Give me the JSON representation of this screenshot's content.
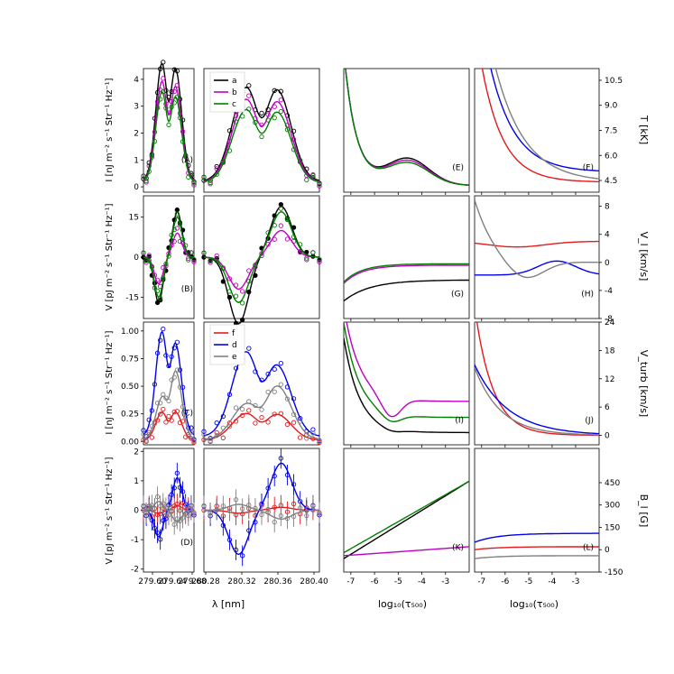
{
  "colors": {
    "black": "#000000",
    "magenta": "#bf00bf",
    "green": "#008000",
    "red": "#e41a1c",
    "blue": "#0000ee",
    "gray": "#808080"
  },
  "legends": {
    "top": [
      {
        "label": "a",
        "color": "#000000"
      },
      {
        "label": "b",
        "color": "#bf00bf"
      },
      {
        "label": "c",
        "color": "#008000"
      }
    ],
    "bottom": [
      {
        "label": "f",
        "color": "#e41a1c"
      },
      {
        "label": "d",
        "color": "#0000ee"
      },
      {
        "label": "e",
        "color": "#808080"
      }
    ]
  },
  "axes_text": {
    "ylabel_A": "I  [nJ m⁻² s⁻¹ Str⁻¹ Hz⁻¹]",
    "ylabel_B": "V  [pJ m⁻² s⁻¹ Str⁻¹ Hz⁻¹]",
    "ylabel_C": "I  [nJ m⁻² s⁻¹ Str⁻¹ Hz⁻¹]",
    "ylabel_D": "V  [pJ m⁻² s⁻¹ Str⁻¹ Hz⁻¹]",
    "xlabel_spec": "λ [nm]",
    "xlabel_tau_left": "log₁₀(τ₅₀₀)",
    "xlabel_tau_right": "log₁₀(τ₅₀₀)",
    "ylabel_T": "T [kK]",
    "ylabel_VL": "V_l [km/s]",
    "ylabel_Vturb": "V_turb [km/s]",
    "ylabel_BL": "B_l [G]"
  },
  "chart_data": [
    {
      "panel": "A",
      "type": "line",
      "ylim": [
        -0.2,
        4.4
      ],
      "yticks": [
        "0",
        "1",
        "2",
        "3",
        "4"
      ],
      "series": [
        {
          "name": "a",
          "color": "#000000",
          "peaks_left": [
            4.15,
            3.95
          ],
          "peaks_right": [
            3.35,
            3.25
          ]
        },
        {
          "name": "b",
          "color": "#bf00bf",
          "peaks_left": [
            3.55,
            3.35
          ],
          "peaks_right": [
            2.95,
            2.85
          ]
        },
        {
          "name": "c",
          "color": "#008000",
          "peaks_left": [
            3.2,
            3.0
          ],
          "peaks_right": [
            2.6,
            2.5
          ]
        }
      ]
    },
    {
      "panel": "B",
      "type": "line",
      "ylim": [
        -23,
        23
      ],
      "yticks": [
        "-15",
        "0",
        "15"
      ],
      "series": [
        {
          "name": "a",
          "color": "#000000",
          "left": [
            -17,
            17
          ],
          "right": [
            -25,
            19
          ]
        },
        {
          "name": "b",
          "color": "#bf00bf",
          "left": [
            -10,
            9
          ],
          "right": [
            -12,
            10
          ]
        },
        {
          "name": "c",
          "color": "#008000",
          "left": [
            -15,
            15
          ],
          "right": [
            -17,
            17
          ]
        }
      ]
    },
    {
      "panel": "C",
      "type": "line",
      "ylim": [
        -0.03,
        1.08
      ],
      "yticks": [
        "0.00",
        "0.25",
        "0.50",
        "0.75",
        "1.00"
      ],
      "series": [
        {
          "name": "f",
          "color": "#e41a1c",
          "peaks_left": [
            0.24,
            0.24
          ],
          "peaks_right": [
            0.23,
            0.22
          ]
        },
        {
          "name": "d",
          "color": "#0000ee",
          "peaks_left": [
            0.9,
            0.79
          ],
          "peaks_right": [
            0.74,
            0.61
          ]
        },
        {
          "name": "e",
          "color": "#808080",
          "peaks_left": [
            0.35,
            0.6
          ],
          "peaks_right": [
            0.3,
            0.47
          ]
        }
      ]
    },
    {
      "panel": "D",
      "type": "line",
      "ylim": [
        -2.1,
        2.1
      ],
      "yticks": [
        "-2",
        "-1",
        "0",
        "1",
        "2"
      ],
      "series": [
        {
          "name": "f",
          "color": "#e41a1c",
          "left": [
            -0.1,
            0.15
          ],
          "right": [
            -0.1,
            0.1
          ]
        },
        {
          "name": "d",
          "color": "#0000ee",
          "left": [
            -0.9,
            1.1
          ],
          "right": [
            -1.5,
            1.6
          ]
        },
        {
          "name": "e",
          "color": "#808080",
          "left": [
            0.3,
            -0.4
          ],
          "right": [
            0.2,
            -0.3
          ]
        }
      ]
    },
    {
      "panel": "E",
      "type": "line",
      "ylabel": "T [kK]",
      "ylim": [
        3.8,
        11.2
      ]
    },
    {
      "panel": "F",
      "type": "line",
      "ylabel": "T [kK]",
      "ylim": [
        3.8,
        11.2
      ],
      "yticks": [
        "4.5",
        "6.0",
        "7.5",
        "9.0",
        "10.5"
      ]
    },
    {
      "panel": "G",
      "type": "line",
      "ylabel": "V_l [km/s]",
      "ylim": [
        -8,
        9.5
      ]
    },
    {
      "panel": "H",
      "type": "line",
      "ylabel": "V_l [km/s]",
      "ylim": [
        -8,
        9.5
      ],
      "yticks": [
        "-8",
        "-4",
        "0",
        "4",
        "8"
      ]
    },
    {
      "panel": "I",
      "type": "line",
      "ylabel": "V_turb [km/s]",
      "ylim": [
        -2,
        24
      ]
    },
    {
      "panel": "J",
      "type": "line",
      "ylabel": "V_turb [km/s]",
      "ylim": [
        -2,
        24
      ],
      "yticks": [
        "0",
        "6",
        "12",
        "18",
        "24"
      ]
    },
    {
      "panel": "K",
      "type": "line",
      "ylabel": "B_l [G]",
      "ylim": [
        -150,
        680
      ]
    },
    {
      "panel": "L",
      "type": "line",
      "ylabel": "B_l [G]",
      "ylim": [
        -150,
        680
      ],
      "yticks": [
        "-150",
        "0",
        "150",
        "300",
        "450"
      ]
    },
    {
      "axis": "wavelength",
      "xlabel": "λ [nm]",
      "xticks_left": [
        "279.60",
        "279.64",
        "279.68"
      ],
      "xticks_right": [
        "280.28",
        "280.32",
        "280.36",
        "280.40"
      ]
    },
    {
      "axis": "tau",
      "xlabel": "log₁₀(τ₅₀₀)",
      "xlim": [
        -7.3,
        -2.0
      ],
      "xticks": [
        "-7",
        "-6",
        "-5",
        "-4",
        "-3"
      ]
    }
  ]
}
